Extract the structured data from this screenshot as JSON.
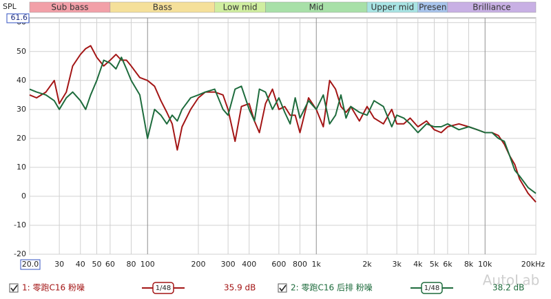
{
  "chart_data": {
    "type": "line",
    "y_label": "SPL",
    "watermark": "AutoLab",
    "log_x": true,
    "grid": true,
    "xlim": [
      20,
      20000
    ],
    "ylim": [
      -20,
      61.6
    ],
    "xticks": [
      {
        "value": 20,
        "label": "20.0"
      },
      30,
      40,
      50,
      60,
      80,
      100,
      200,
      300,
      400,
      600,
      800,
      {
        "value": 1000,
        "label": "1k"
      },
      {
        "value": 2000,
        "label": "2k"
      },
      {
        "value": 3000,
        "label": "3k"
      },
      {
        "value": 4000,
        "label": "4k"
      },
      {
        "value": 5000,
        "label": "5k"
      },
      {
        "value": 6000,
        "label": "6k"
      },
      {
        "value": 8000,
        "label": "8k"
      },
      {
        "value": 10000,
        "label": "10k"
      },
      {
        "value": 20000,
        "label": "20kHz"
      }
    ],
    "yticks": [
      -20,
      -10,
      0,
      10,
      20,
      30,
      40,
      50,
      60
    ],
    "bands": [
      {
        "name": "Sub bass",
        "from": 20,
        "to": 60,
        "color": "#f2a0a8"
      },
      {
        "name": "Bass",
        "from": 60,
        "to": 250,
        "color": "#f5e09a"
      },
      {
        "name": "Low mid",
        "from": 250,
        "to": 500,
        "color": "#d0eea0"
      },
      {
        "name": "Mid",
        "from": 500,
        "to": 2000,
        "color": "#a8e0a8"
      },
      {
        "name": "Upper mid",
        "from": 2000,
        "to": 4000,
        "color": "#a8e4e4"
      },
      {
        "name": "Presen",
        "from": 4000,
        "to": 6000,
        "color": "#a8c4ec"
      },
      {
        "name": "Brilliance",
        "from": 6000,
        "to": 20000,
        "color": "#c8b0e4"
      }
    ],
    "x": [
      20,
      22,
      25,
      28,
      30,
      33,
      36,
      40,
      43,
      46,
      50,
      55,
      60,
      65,
      70,
      75,
      80,
      90,
      100,
      110,
      120,
      130,
      140,
      150,
      160,
      180,
      200,
      220,
      250,
      280,
      300,
      330,
      360,
      400,
      430,
      460,
      500,
      550,
      600,
      650,
      700,
      750,
      800,
      900,
      1000,
      1100,
      1200,
      1300,
      1400,
      1500,
      1600,
      1800,
      2000,
      2200,
      2500,
      2800,
      3000,
      3300,
      3600,
      4000,
      4500,
      5000,
      5500,
      6000,
      7000,
      8000,
      9000,
      10000,
      11000,
      12000,
      13000,
      14000,
      15000,
      16000,
      18000,
      20000
    ],
    "series": [
      {
        "name": "1: 零跑C16 粉噪",
        "color": "#a31515",
        "smoothing": "1/48",
        "level": "35.9 dB",
        "values": [
          35,
          34,
          36,
          40,
          32,
          36,
          45,
          49,
          51,
          52,
          48,
          45,
          47,
          49,
          47,
          47,
          45,
          41,
          40,
          38,
          33,
          29,
          25,
          16,
          24,
          30,
          34,
          36,
          36,
          35,
          30,
          19,
          31,
          32,
          26,
          22,
          32,
          37,
          30,
          31,
          28,
          28,
          22,
          34,
          30,
          24,
          40,
          37,
          31,
          29,
          31,
          26,
          31,
          27,
          25,
          30,
          25,
          25,
          27,
          24,
          26,
          23,
          22,
          24,
          25,
          24,
          23,
          22,
          22,
          21,
          18,
          14,
          11,
          6,
          1,
          -2
        ]
      },
      {
        "name": "2: 零跑C16 后排 粉噪",
        "color": "#1d6b3c",
        "smoothing": "1/48",
        "level": "38.2 dB",
        "values": [
          37,
          36,
          35,
          33,
          30,
          34,
          36,
          33,
          30,
          35,
          40,
          47,
          46,
          44,
          48,
          44,
          40,
          35,
          20,
          30,
          28,
          25,
          28,
          26,
          30,
          34,
          35,
          36,
          37,
          30,
          28,
          37,
          38,
          30,
          26,
          37,
          36,
          30,
          34,
          29,
          25,
          34,
          27,
          33,
          30,
          35,
          25,
          28,
          35,
          27,
          31,
          29,
          28,
          33,
          31,
          24,
          28,
          27,
          25,
          22,
          25,
          24,
          24,
          25,
          23,
          24,
          23,
          22,
          22,
          20,
          19,
          14,
          9,
          7,
          3,
          1
        ]
      }
    ]
  }
}
